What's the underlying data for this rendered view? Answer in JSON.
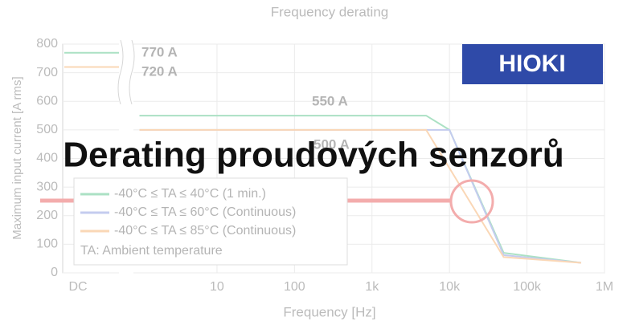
{
  "chart_data": {
    "type": "line",
    "title": "Frequency derating",
    "overlay_title": "Derating proudových senzorů",
    "logo": "HIOKI",
    "x_label": "Frequency [Hz]",
    "y_label": "Maximum input current [A rms]",
    "dc_label": "DC",
    "log_x": true,
    "grid": true,
    "xlim": [
      1,
      1000000
    ],
    "xticks": [
      10,
      100,
      {
        "value": 1000,
        "label": "1k"
      },
      {
        "value": 10000,
        "label": "10k"
      },
      {
        "value": 100000,
        "label": "100k"
      },
      {
        "value": 1000000,
        "label": "1M"
      }
    ],
    "ylim": [
      0,
      800
    ],
    "yticks": [
      0,
      100,
      200,
      300,
      400,
      500,
      600,
      700,
      800
    ],
    "series": [
      {
        "name": "-40°C ≤ TA ≤ 40°C (1 min.)",
        "color": "#2db36b",
        "dc_value": 770,
        "x": [
          1,
          5000,
          10000,
          50000,
          500000
        ],
        "values": [
          550,
          550,
          500,
          70,
          35
        ]
      },
      {
        "name": "-40°C ≤ TA ≤ 60°C (Continuous)",
        "color": "#6b7fd6",
        "dc_value": null,
        "x": [
          1,
          5000,
          10000,
          50000,
          500000
        ],
        "values": [
          500,
          500,
          500,
          62,
          35
        ]
      },
      {
        "name": "-40°C ≤ TA ≤ 85°C (Continuous)",
        "color": "#f39c4a",
        "dc_value": 720,
        "x": [
          1,
          5000,
          50000,
          500000
        ],
        "values": [
          500,
          500,
          55,
          35
        ]
      }
    ],
    "legend_note": "TA: Ambient temperature",
    "annotations": [
      "770 A",
      "720 A",
      "550 A",
      "500 A"
    ]
  }
}
